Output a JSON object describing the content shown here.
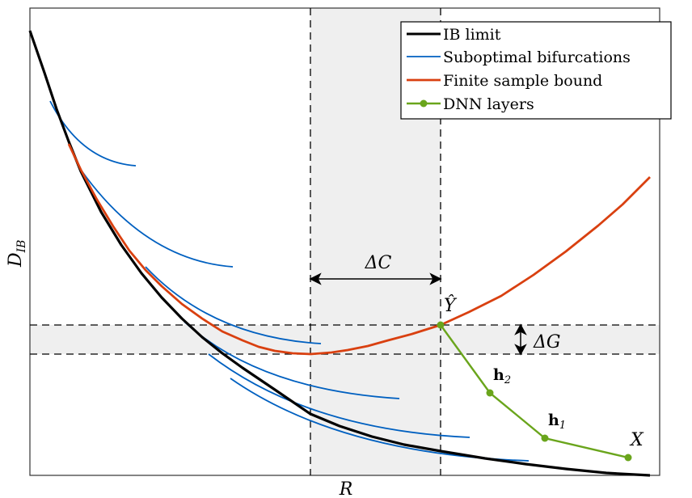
{
  "axes": {
    "xlabel": "R",
    "ylabel_main": "D",
    "ylabel_sub": "IB"
  },
  "legend": {
    "placement": "top-right",
    "items": [
      {
        "label": "IB limit",
        "color": "#000000"
      },
      {
        "label": "Suboptimal bifurcations",
        "color": "#0060c0"
      },
      {
        "label": "Finite sample bound",
        "color": "#d94010"
      },
      {
        "label": "DNN layers",
        "color": "#6aa51c"
      }
    ]
  },
  "annotations": {
    "delta_c": "ΔC",
    "delta_g": "ΔG",
    "y_hat": "Ŷ",
    "h2_main": "h",
    "h2_sub": "2",
    "h1_main": "h",
    "h1_sub": "1",
    "x_label": "X"
  },
  "colors": {
    "band": "#efefef",
    "ib": "#000000",
    "bifurcation": "#0060c0",
    "bound": "#d94010",
    "dnn": "#6aa51c"
  }
}
